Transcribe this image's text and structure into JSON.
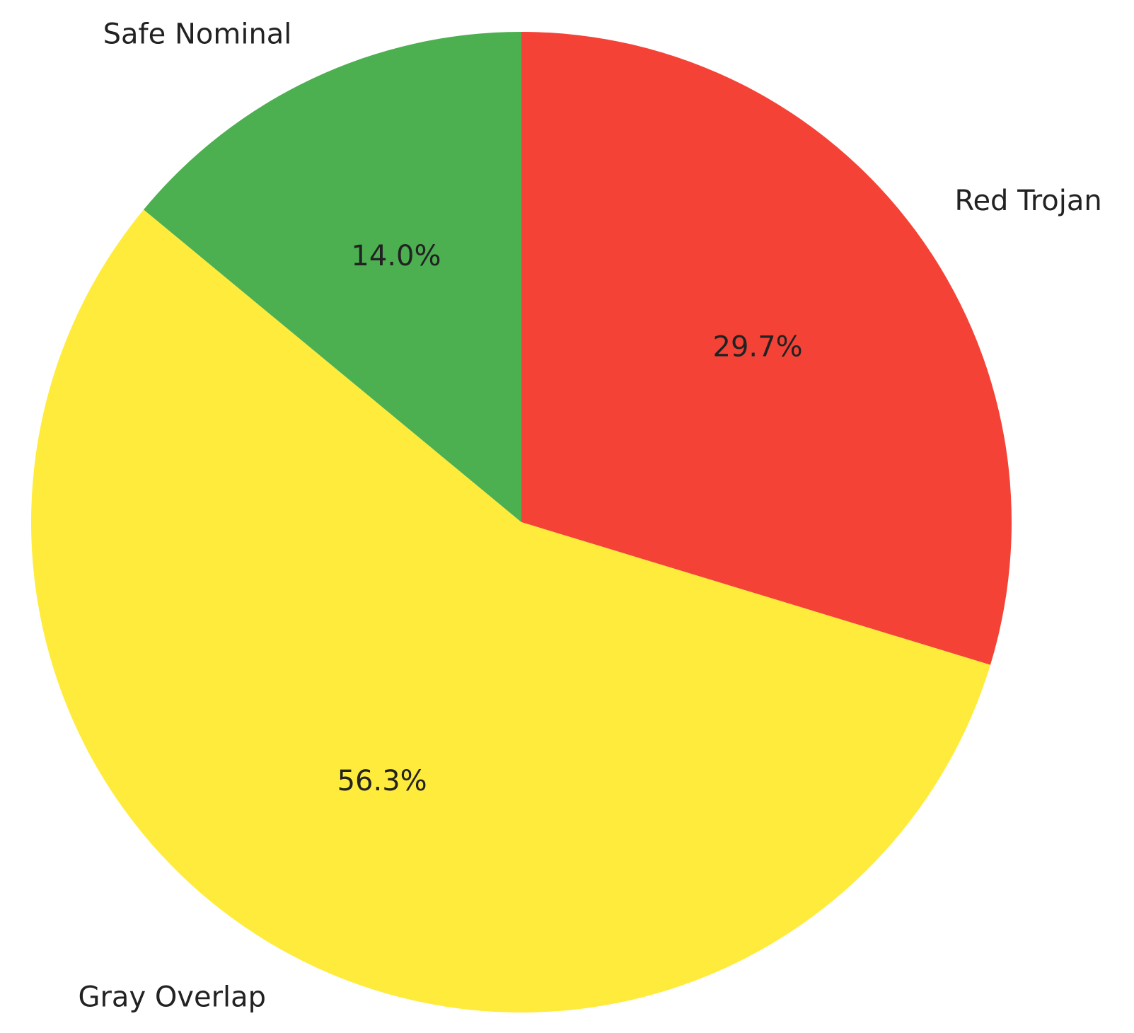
{
  "chart_data": {
    "type": "pie",
    "title": "",
    "start_angle_deg": 90,
    "direction": "clockwise",
    "slices": [
      {
        "label": "Red Trojan",
        "value": 29.7,
        "pct_label": "29.7%",
        "color": "#f44336"
      },
      {
        "label": "Gray Overlap",
        "value": 56.3,
        "pct_label": "56.3%",
        "color": "#ffeb3b"
      },
      {
        "label": "Safe Nominal",
        "value": 14.0,
        "pct_label": "14.0%",
        "color": "#4caf50"
      }
    ]
  }
}
